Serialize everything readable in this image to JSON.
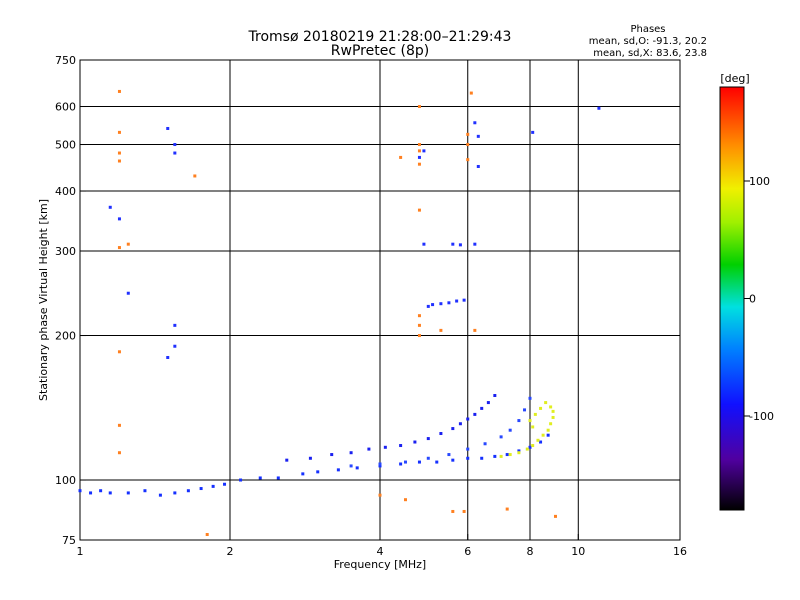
{
  "chart_data": {
    "type": "scatter",
    "title": "Tromsø 20180219 21:28:00–21:29:43",
    "subtitle": "RwPretec (8p)",
    "xlabel": "Frequency [MHz]",
    "ylabel": "Stationary phase Virtual Height [km]",
    "xscale": "log",
    "yscale": "log",
    "xlim": [
      1,
      16
    ],
    "ylim": [
      75,
      750
    ],
    "x_ticks": [
      1,
      2,
      4,
      6,
      8,
      10,
      16
    ],
    "x_tick_labels": [
      "1",
      "2",
      "4",
      "6",
      "8",
      "10",
      "16"
    ],
    "y_ticks": [
      75,
      100,
      200,
      300,
      400,
      500,
      600,
      750
    ],
    "y_tick_labels": [
      "75",
      "100",
      "200",
      "300",
      "400",
      "500",
      "600",
      "750"
    ],
    "x_grid": [
      2,
      4,
      6,
      8,
      10
    ],
    "y_grid": [
      100,
      200,
      300,
      400,
      500,
      600
    ],
    "legend": {
      "title": "Phases",
      "line1": "mean, sd,O: -91.3, 20.2",
      "line2": "mean, sd,X:  83.6, 23.8"
    },
    "colorbar": {
      "label": "[deg]",
      "range": [
        -180,
        180
      ],
      "ticks": [
        100,
        0,
        -100
      ],
      "tick_labels": [
        "100",
        "0",
        "-100"
      ],
      "placement": "right"
    },
    "series": [
      {
        "name": "O-trace lower",
        "color": "#1530ff",
        "points": [
          [
            1.0,
            95
          ],
          [
            1.05,
            94
          ],
          [
            1.1,
            95
          ],
          [
            1.15,
            94
          ],
          [
            1.25,
            94
          ],
          [
            1.35,
            95
          ],
          [
            1.45,
            93
          ],
          [
            1.55,
            94
          ],
          [
            1.65,
            95
          ],
          [
            1.75,
            96
          ],
          [
            1.85,
            97
          ],
          [
            1.95,
            98
          ],
          [
            2.1,
            100
          ],
          [
            2.3,
            101
          ],
          [
            2.5,
            101
          ],
          [
            2.8,
            103
          ],
          [
            3.0,
            104
          ],
          [
            3.3,
            105
          ],
          [
            3.6,
            106
          ],
          [
            4.0,
            107
          ],
          [
            4.4,
            108
          ],
          [
            4.8,
            109
          ],
          [
            5.2,
            109
          ],
          [
            5.6,
            110
          ],
          [
            6.0,
            111
          ],
          [
            6.4,
            111
          ],
          [
            6.8,
            112
          ],
          [
            7.2,
            113
          ],
          [
            7.6,
            115
          ],
          [
            8.0,
            117
          ],
          [
            8.4,
            120
          ],
          [
            8.7,
            124
          ]
        ]
      },
      {
        "name": "O-trace upper",
        "color": "#1a20f0",
        "points": [
          [
            2.6,
            110
          ],
          [
            2.9,
            111
          ],
          [
            3.2,
            113
          ],
          [
            3.5,
            114
          ],
          [
            3.8,
            116
          ],
          [
            4.1,
            117
          ],
          [
            4.4,
            118
          ],
          [
            4.7,
            120
          ],
          [
            5.0,
            122
          ],
          [
            5.3,
            125
          ],
          [
            5.6,
            128
          ],
          [
            5.8,
            131
          ],
          [
            6.0,
            134
          ],
          [
            6.2,
            137
          ],
          [
            6.4,
            141
          ],
          [
            6.6,
            145
          ],
          [
            6.8,
            150
          ]
        ]
      },
      {
        "name": "O-trace middle",
        "color": "#2848ff",
        "points": [
          [
            3.5,
            107
          ],
          [
            4.0,
            108
          ],
          [
            4.5,
            109
          ],
          [
            5.0,
            111
          ],
          [
            5.5,
            113
          ],
          [
            6.0,
            116
          ],
          [
            6.5,
            119
          ],
          [
            7.0,
            123
          ],
          [
            7.3,
            127
          ],
          [
            7.6,
            133
          ],
          [
            7.8,
            140
          ],
          [
            8.0,
            148
          ]
        ]
      },
      {
        "name": "X-trace",
        "color": "#e0ee20",
        "points": [
          [
            7.0,
            112
          ],
          [
            7.3,
            113
          ],
          [
            7.6,
            114
          ],
          [
            7.9,
            116
          ],
          [
            8.1,
            118
          ],
          [
            8.3,
            121
          ],
          [
            8.5,
            124
          ],
          [
            8.7,
            127
          ],
          [
            8.8,
            131
          ],
          [
            8.9,
            135
          ],
          [
            8.9,
            139
          ],
          [
            8.8,
            142
          ],
          [
            8.6,
            145
          ],
          [
            8.4,
            141
          ],
          [
            8.2,
            137
          ],
          [
            8.0,
            133
          ],
          [
            8.1,
            129
          ]
        ]
      },
      {
        "name": "F-region echoes",
        "color": "#2030ff",
        "points": [
          [
            5.0,
            230
          ],
          [
            5.1,
            232
          ],
          [
            5.3,
            233
          ],
          [
            5.5,
            234
          ],
          [
            5.7,
            236
          ],
          [
            5.9,
            237
          ],
          [
            4.9,
            310
          ],
          [
            5.6,
            310
          ],
          [
            5.8,
            309
          ],
          [
            6.2,
            310
          ],
          [
            6.3,
            450
          ],
          [
            6.3,
            520
          ],
          [
            6.2,
            555
          ],
          [
            4.9,
            485
          ],
          [
            4.8,
            470
          ],
          [
            1.2,
            350
          ],
          [
            1.15,
            370
          ],
          [
            1.5,
            540
          ],
          [
            1.55,
            500
          ],
          [
            1.55,
            480
          ],
          [
            1.55,
            210
          ],
          [
            1.55,
            190
          ],
          [
            1.5,
            180
          ],
          [
            1.25,
            245
          ],
          [
            11.0,
            595
          ],
          [
            8.1,
            530
          ]
        ]
      },
      {
        "name": "Scattered points",
        "color": "#ff8020",
        "points": [
          [
            1.2,
            645
          ],
          [
            1.2,
            530
          ],
          [
            1.2,
            480
          ],
          [
            1.2,
            462
          ],
          [
            1.2,
            305
          ],
          [
            1.25,
            310
          ],
          [
            1.2,
            185
          ],
          [
            1.2,
            130
          ],
          [
            1.2,
            114
          ],
          [
            1.7,
            430
          ],
          [
            1.8,
            77
          ],
          [
            4.8,
            365
          ],
          [
            4.8,
            500
          ],
          [
            4.8,
            485
          ],
          [
            4.8,
            455
          ],
          [
            4.8,
            220
          ],
          [
            4.8,
            210
          ],
          [
            4.8,
            200
          ],
          [
            4.4,
            470
          ],
          [
            6.0,
            465
          ],
          [
            6.0,
            525
          ],
          [
            6.0,
            500
          ],
          [
            4.0,
            93
          ],
          [
            4.5,
            91
          ],
          [
            5.6,
            86
          ],
          [
            5.9,
            86
          ],
          [
            7.2,
            87
          ],
          [
            9.0,
            84
          ],
          [
            6.1,
            640
          ],
          [
            4.8,
            600
          ],
          [
            6.2,
            205
          ],
          [
            5.3,
            205
          ]
        ]
      }
    ]
  }
}
